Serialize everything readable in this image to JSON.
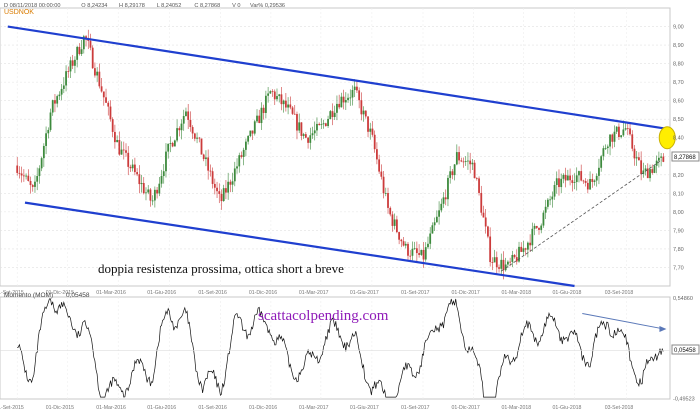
{
  "header": {
    "symbol": "USDNOK",
    "fields": [
      {
        "label": "D",
        "value": "08/11/2018 00:00:00"
      },
      {
        "label": "O",
        "value": "8,24234"
      },
      {
        "label": "H",
        "value": "8,29178"
      },
      {
        "label": "L",
        "value": "8,24052"
      },
      {
        "label": "C",
        "value": "8,27868"
      },
      {
        "label": "V",
        "value": "0"
      },
      {
        "label": "Var%",
        "value": "0,29536"
      }
    ]
  },
  "chart_data": [
    {
      "type": "candlestick",
      "title": "",
      "series_name": "USDNOK",
      "ylim": [
        7.6,
        9.1
      ],
      "yticks": [
        7.7,
        7.8,
        7.9,
        8.0,
        8.1,
        8.2,
        8.3,
        8.4,
        8.5,
        8.6,
        8.7,
        8.8,
        8.9,
        9.0
      ],
      "ytick_labels": [
        "7,70",
        "7,80",
        "7,90",
        "8,00",
        "8,10",
        "8,20",
        "8,30",
        "8,40",
        "8,50",
        "8,60",
        "8,70",
        "8,80",
        "8,90",
        "9,00"
      ],
      "xtick_labels": [
        "01-Set-2015",
        "01-Dic-2015",
        "01-Mar-2016",
        "01-Giu-2016",
        "01-Set-2016",
        "01-Dic-2016",
        "01-Mar-2017",
        "01-Giu-2017",
        "01-Set-2017",
        "01-Dic-2017",
        "01-Mar-2018",
        "01-Giu-2018",
        "03-Set-2018"
      ],
      "last_value_label": "8,27868",
      "close_path": [
        [
          "2015-09-01",
          8.25
        ],
        [
          "2015-10-01",
          8.1
        ],
        [
          "2015-11-01",
          8.55
        ],
        [
          "2015-12-01",
          8.75
        ],
        [
          "2016-01-01",
          8.95
        ],
        [
          "2016-02-01",
          8.65
        ],
        [
          "2016-03-01",
          8.35
        ],
        [
          "2016-04-01",
          8.2
        ],
        [
          "2016-05-01",
          8.05
        ],
        [
          "2016-06-01",
          8.35
        ],
        [
          "2016-07-01",
          8.55
        ],
        [
          "2016-08-01",
          8.3
        ],
        [
          "2016-09-01",
          8.05
        ],
        [
          "2016-10-01",
          8.25
        ],
        [
          "2016-11-01",
          8.45
        ],
        [
          "2016-12-01",
          8.65
        ],
        [
          "2017-01-01",
          8.55
        ],
        [
          "2017-02-01",
          8.4
        ],
        [
          "2017-03-01",
          8.45
        ],
        [
          "2017-04-01",
          8.6
        ],
        [
          "2017-05-01",
          8.65
        ],
        [
          "2017-06-01",
          8.4
        ],
        [
          "2017-07-01",
          8.0
        ],
        [
          "2017-08-01",
          7.8
        ],
        [
          "2017-09-01",
          7.75
        ],
        [
          "2017-10-01",
          8.0
        ],
        [
          "2017-11-01",
          8.3
        ],
        [
          "2017-12-01",
          8.25
        ],
        [
          "2018-01-01",
          7.75
        ],
        [
          "2018-02-01",
          7.7
        ],
        [
          "2018-03-01",
          7.8
        ],
        [
          "2018-04-01",
          7.95
        ],
        [
          "2018-05-01",
          8.15
        ],
        [
          "2018-06-01",
          8.2
        ],
        [
          "2018-07-01",
          8.15
        ],
        [
          "2018-08-01",
          8.4
        ],
        [
          "2018-09-01",
          8.45
        ],
        [
          "2018-10-01",
          8.2
        ],
        [
          "2018-11-08",
          8.28
        ]
      ],
      "trendlines": [
        {
          "name": "upper-channel",
          "from": [
            "2015-08-15",
            9.0
          ],
          "to": [
            "2018-11-10",
            8.45
          ]
        },
        {
          "name": "lower-channel",
          "from": [
            "2015-09-15",
            8.05
          ],
          "to": [
            "2018-06-01",
            7.6
          ]
        },
        {
          "name": "support-dashed",
          "from": [
            "2018-01-20",
            7.68
          ],
          "to": [
            "2018-11-05",
            8.28
          ]
        }
      ],
      "highlight": {
        "name": "resistance-target",
        "at": [
          "2018-11-15",
          8.4
        ]
      },
      "annotation": "doppia resistenza prossima, ottica short a breve"
    },
    {
      "type": "line",
      "title": "Momento (MOM)",
      "value_label": "0,05458",
      "ylim": [
        -0.5,
        0.55
      ],
      "ytick_labels": [
        "0,54860",
        "0,05458",
        "-0,49523"
      ],
      "xtick_labels": [
        "01-Set-2015",
        "01-Dic-2015",
        "01-Mar-2016",
        "01-Giu-2016",
        "01-Set-2016",
        "01-Dic-2016",
        "01-Mar-2017",
        "01-Giu-2017",
        "01-Set-2017",
        "01-Dic-2017",
        "01-Mar-2018",
        "01-Giu-2018",
        "03-Set-2018"
      ],
      "divergence_line": {
        "from": [
          "2018-06-15",
          0.38
        ],
        "to": [
          "2018-11-10",
          0.22
        ]
      },
      "watermark": "scattacolpending.com"
    }
  ],
  "colors": {
    "up_candle": "#3d8a3d",
    "down_candle": "#cc3b3b",
    "channel": "#1f3fcf",
    "highlight": "#ffee00",
    "watermark": "#8f1bb8",
    "symbol": "#d97b00",
    "last_value_box": "#ffffff"
  }
}
